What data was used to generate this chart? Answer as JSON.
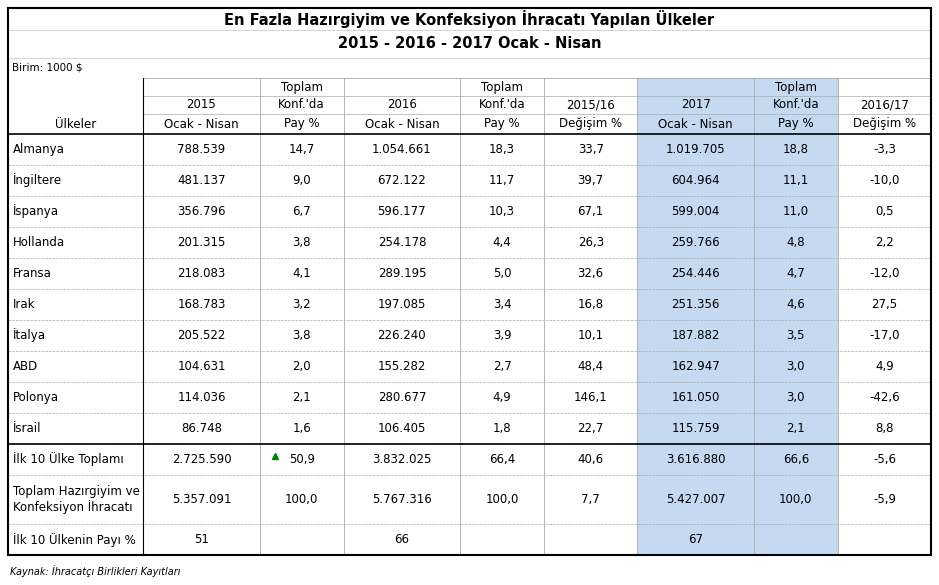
{
  "title1": "En Fazla Hazırgiyim ve Konfeksiyon İhracatı Yapılan Ülkeler",
  "title2": "2015 - 2016 - 2017 Ocak - Nisan",
  "birim": "Birim: 1000 $",
  "source": "Kaynak: İhracatçı Birlikleri Kayıtları",
  "rows": [
    [
      "Almanya",
      "788.539",
      "14,7",
      "1.054.661",
      "18,3",
      "33,7",
      "1.019.705",
      "18,8",
      "-3,3"
    ],
    [
      "İngiltere",
      "481.137",
      "9,0",
      "672.122",
      "11,7",
      "39,7",
      "604.964",
      "11,1",
      "-10,0"
    ],
    [
      "İspanya",
      "356.796",
      "6,7",
      "596.177",
      "10,3",
      "67,1",
      "599.004",
      "11,0",
      "0,5"
    ],
    [
      "Hollanda",
      "201.315",
      "3,8",
      "254.178",
      "4,4",
      "26,3",
      "259.766",
      "4,8",
      "2,2"
    ],
    [
      "Fransa",
      "218.083",
      "4,1",
      "289.195",
      "5,0",
      "32,6",
      "254.446",
      "4,7",
      "-12,0"
    ],
    [
      "Irak",
      "168.783",
      "3,2",
      "197.085",
      "3,4",
      "16,8",
      "251.356",
      "4,6",
      "27,5"
    ],
    [
      "İtalya",
      "205.522",
      "3,8",
      "226.240",
      "3,9",
      "10,1",
      "187.882",
      "3,5",
      "-17,0"
    ],
    [
      "ABD",
      "104.631",
      "2,0",
      "155.282",
      "2,7",
      "48,4",
      "162.947",
      "3,0",
      "4,9"
    ],
    [
      "Polonya",
      "114.036",
      "2,1",
      "280.677",
      "4,9",
      "146,1",
      "161.050",
      "3,0",
      "-42,6"
    ],
    [
      "İsrail",
      "86.748",
      "1,6",
      "106.405",
      "1,8",
      "22,7",
      "115.759",
      "2,1",
      "8,8"
    ]
  ],
  "total_row": [
    "İlk 10 Ülke Toplamı",
    "2.725.590",
    "50,9",
    "3.832.025",
    "66,4",
    "40,6",
    "3.616.880",
    "66,6",
    "-5,6"
  ],
  "grand_total_row": [
    "Toplam Hazırgiyim ve\nKonfeksiyon İhracatı",
    "5.357.091",
    "100,0",
    "5.767.316",
    "100,0",
    "7,7",
    "5.427.007",
    "100,0",
    "-5,9"
  ],
  "pct_row": [
    "İlk 10 Ülkenin Payı %",
    "51",
    "",
    "66",
    "",
    "",
    "67",
    "",
    ""
  ],
  "highlight_bg": "#c5d9f1",
  "white": "#ffffff",
  "light_gray": "#f2f2f2",
  "col_widths_rel": [
    1.45,
    1.25,
    0.9,
    1.25,
    0.9,
    1.0,
    1.25,
    0.9,
    1.0
  ],
  "font_size": 8.5,
  "title_font_size": 10.5
}
